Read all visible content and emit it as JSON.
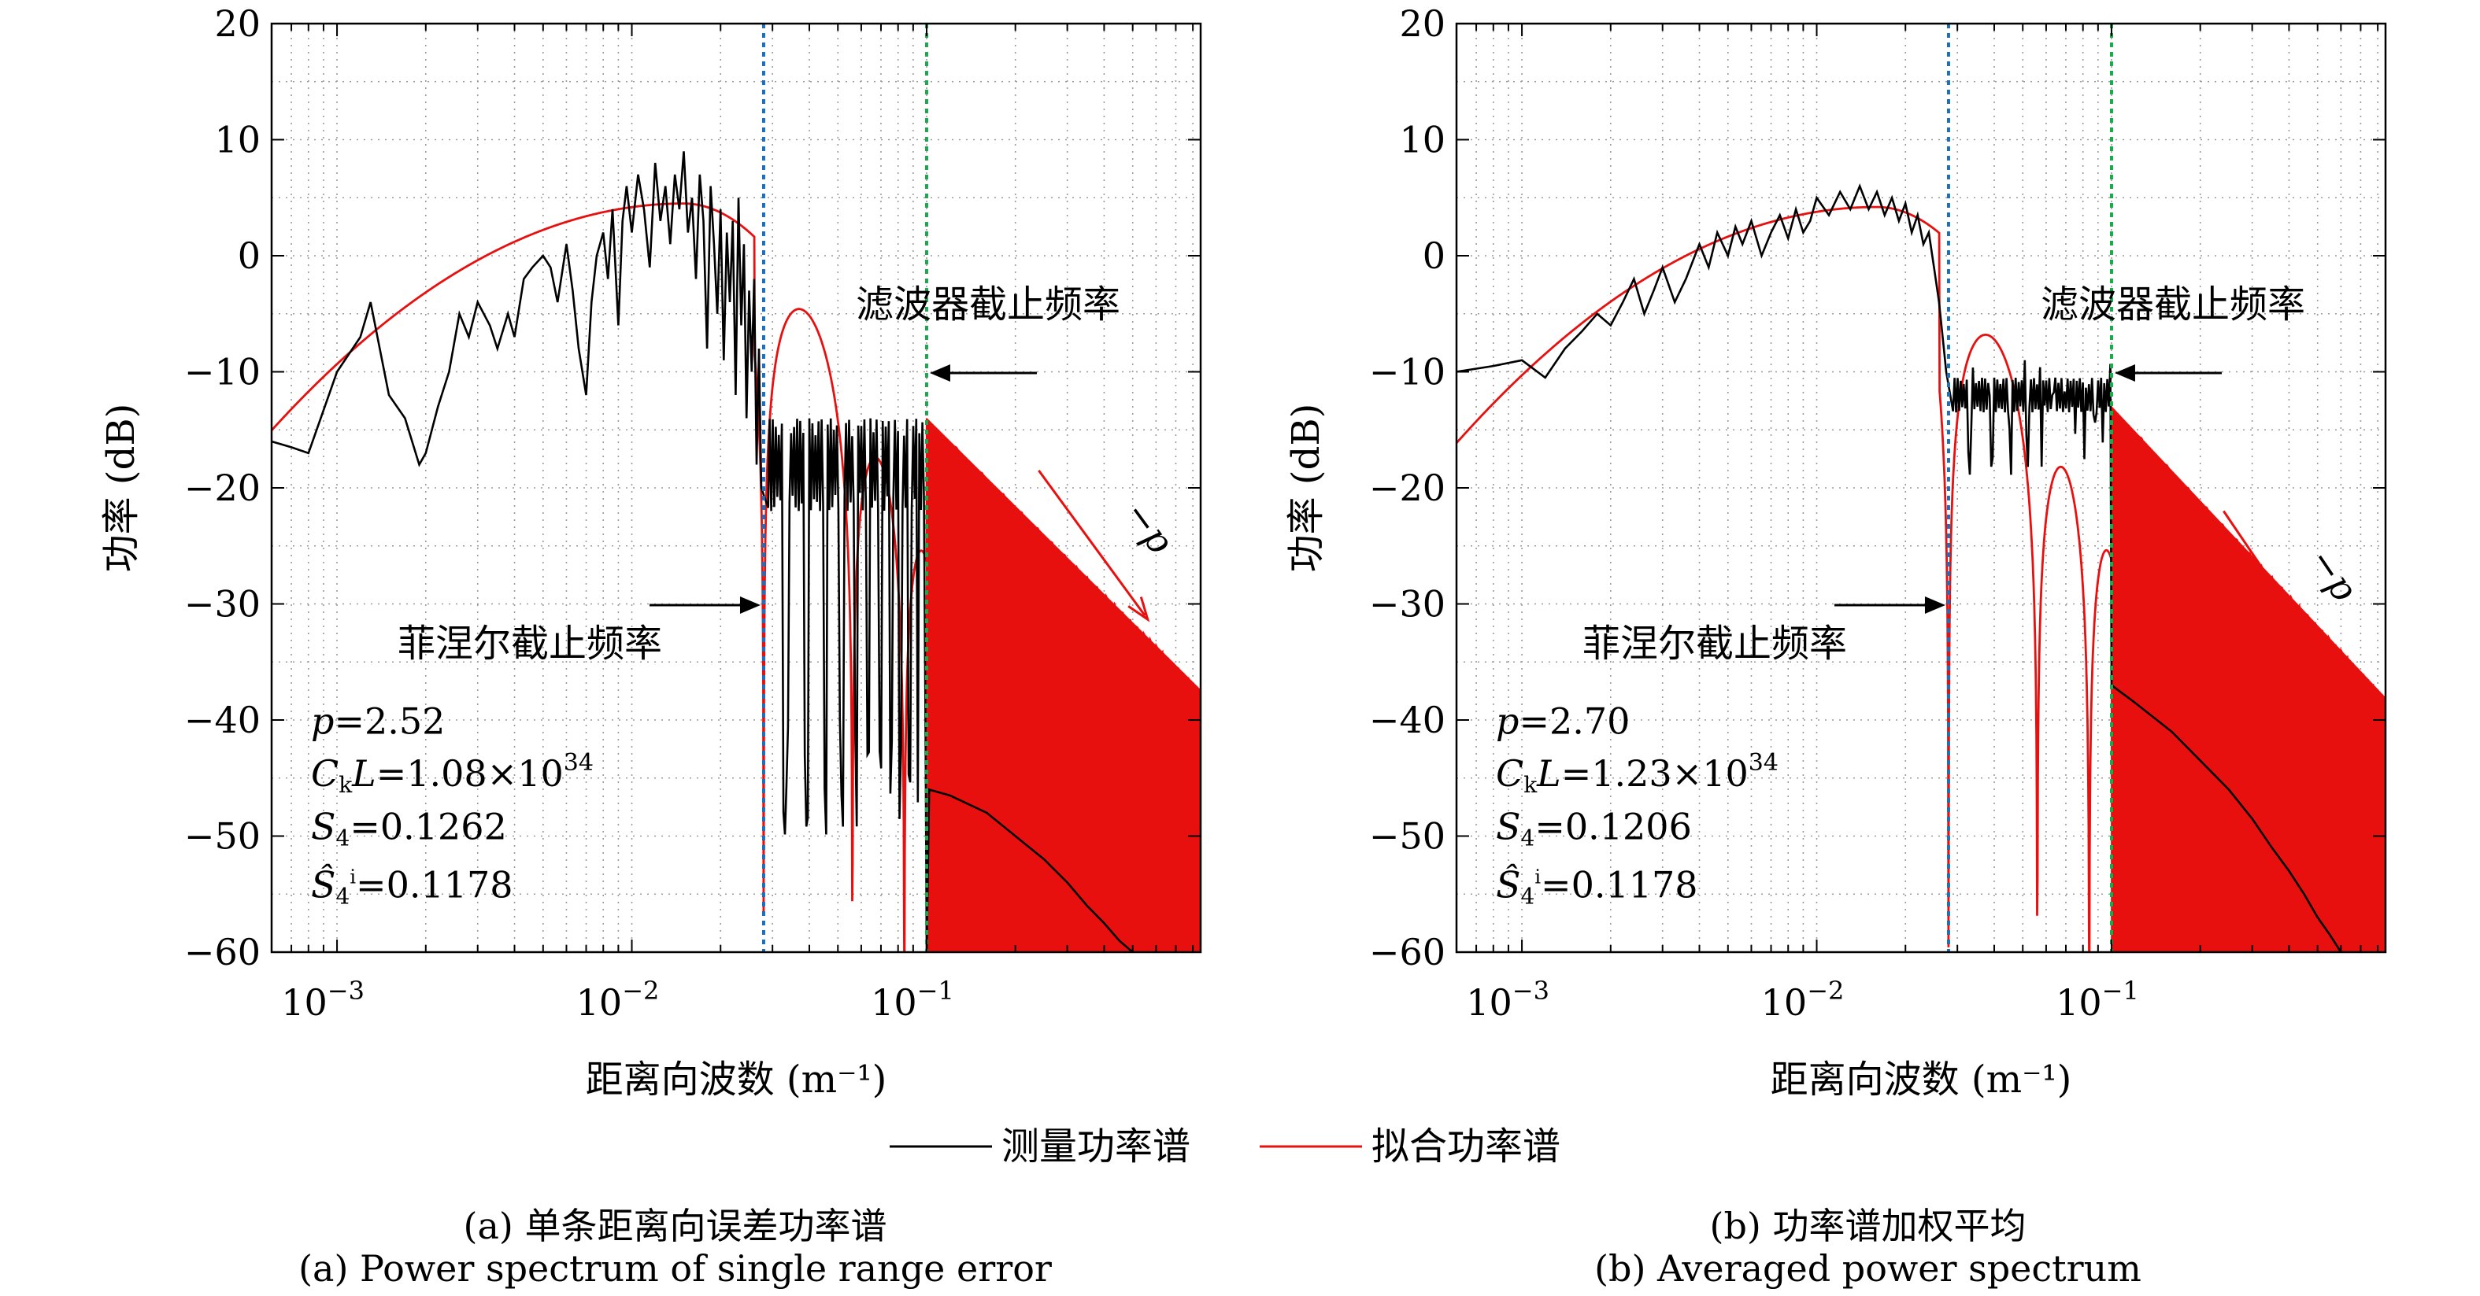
{
  "chart_data": [
    {
      "type": "line",
      "panel": "a",
      "xscale": "log",
      "xlim": [
        0.0006,
        0.85
      ],
      "ylim": [
        -60,
        20
      ],
      "xlabel": "距离向波数 (m⁻¹)",
      "ylabel": "功率 (dB)",
      "yticks": [
        "20",
        "10",
        "0",
        "−10",
        "−20",
        "−30",
        "−40",
        "−50",
        "−60"
      ],
      "xticks": [
        {
          "base": "10",
          "exp": "−3"
        },
        {
          "base": "10",
          "exp": "−2"
        },
        {
          "base": "10",
          "exp": "−1"
        }
      ],
      "grid": true,
      "fresnel_cutoff": 0.028,
      "filter_cutoff": 0.1,
      "fresnel_label": "菲涅尔截止频率",
      "filter_label": "滤波器截止频率",
      "slope_label": "−p",
      "params": {
        "p": "=2.52",
        "ckl": "=1.08×10",
        "ckl_exp": "34",
        "s4": "=0.1262",
        "s4hat": "=0.1178"
      },
      "measured_points": [
        [
          0.0006,
          -16
        ],
        [
          0.0007,
          -16.5
        ],
        [
          0.0008,
          -17
        ],
        [
          0.001,
          -10
        ],
        [
          0.0012,
          -7
        ],
        [
          0.0013,
          -4
        ],
        [
          0.0015,
          -12
        ],
        [
          0.0017,
          -14
        ],
        [
          0.0019,
          -18
        ],
        [
          0.002,
          -17
        ],
        [
          0.0022,
          -13
        ],
        [
          0.0024,
          -10
        ],
        [
          0.0026,
          -5
        ],
        [
          0.0028,
          -7
        ],
        [
          0.003,
          -4
        ],
        [
          0.0033,
          -6
        ],
        [
          0.0035,
          -8
        ],
        [
          0.0038,
          -5
        ],
        [
          0.004,
          -7
        ],
        [
          0.0043,
          -2
        ],
        [
          0.0046,
          -1
        ],
        [
          0.005,
          0
        ],
        [
          0.0053,
          -1
        ],
        [
          0.0056,
          -4
        ],
        [
          0.006,
          1
        ],
        [
          0.0063,
          -3
        ],
        [
          0.0066,
          -8
        ],
        [
          0.007,
          -12
        ],
        [
          0.0073,
          -4
        ],
        [
          0.0076,
          0
        ],
        [
          0.008,
          2
        ],
        [
          0.0083,
          -2
        ],
        [
          0.0086,
          4
        ],
        [
          0.009,
          -6
        ],
        [
          0.0093,
          3
        ],
        [
          0.0096,
          6
        ],
        [
          0.01,
          2
        ],
        [
          0.0105,
          7
        ],
        [
          0.011,
          4
        ],
        [
          0.0115,
          -1
        ],
        [
          0.012,
          8
        ],
        [
          0.0125,
          3
        ],
        [
          0.013,
          6
        ],
        [
          0.0135,
          1
        ],
        [
          0.014,
          7
        ],
        [
          0.0145,
          4
        ],
        [
          0.015,
          9
        ],
        [
          0.0155,
          2
        ],
        [
          0.016,
          5
        ],
        [
          0.0165,
          -2
        ],
        [
          0.017,
          7
        ],
        [
          0.0175,
          3
        ],
        [
          0.018,
          -8
        ],
        [
          0.0185,
          6
        ],
        [
          0.019,
          1
        ],
        [
          0.0195,
          -5
        ],
        [
          0.02,
          4
        ],
        [
          0.0205,
          -9
        ],
        [
          0.021,
          2
        ],
        [
          0.0215,
          -4
        ],
        [
          0.022,
          3
        ],
        [
          0.0225,
          -12
        ],
        [
          0.023,
          5
        ],
        [
          0.0235,
          -6
        ],
        [
          0.024,
          1
        ],
        [
          0.0245,
          -14
        ],
        [
          0.025,
          -3
        ],
        [
          0.0255,
          -10
        ],
        [
          0.026,
          -2
        ],
        [
          0.0265,
          -18
        ],
        [
          0.027,
          -8
        ],
        [
          0.0275,
          -20
        ]
      ],
      "measured_beyond": {
        "base": -18,
        "amp": 4,
        "dip": -45,
        "until": 0.1
      },
      "measured_tail": [
        [
          0.1,
          -60
        ],
        [
          0.102,
          -46
        ],
        [
          0.12,
          -46.5
        ],
        [
          0.16,
          -48
        ],
        [
          0.2,
          -50
        ],
        [
          0.25,
          -52
        ],
        [
          0.3,
          -54
        ],
        [
          0.35,
          -56
        ],
        [
          0.4,
          -57.5
        ],
        [
          0.45,
          -59
        ],
        [
          0.5,
          -60
        ]
      ],
      "fit": {
        "peak_k": 0.015,
        "peak_db": 4.5,
        "lobe_top": [
          -0.5,
          -14
        ],
        "slope": -2.52
      }
    },
    {
      "type": "line",
      "panel": "b",
      "xscale": "log",
      "xlim": [
        0.0006,
        0.85
      ],
      "ylim": [
        -60,
        20
      ],
      "xlabel": "距离向波数 (m⁻¹)",
      "ylabel": "功率 (dB)",
      "yticks": [
        "20",
        "10",
        "0",
        "−10",
        "−20",
        "−30",
        "−40",
        "−50",
        "−60"
      ],
      "xticks": [
        {
          "base": "10",
          "exp": "−3"
        },
        {
          "base": "10",
          "exp": "−2"
        },
        {
          "base": "10",
          "exp": "−1"
        }
      ],
      "grid": true,
      "fresnel_cutoff": 0.028,
      "filter_cutoff": 0.1,
      "fresnel_label": "菲涅尔截止频率",
      "filter_label": "滤波器截止频率",
      "slope_label": "−p",
      "params": {
        "p": "=2.70",
        "ckl": "=1.23×10",
        "ckl_exp": "34",
        "s4": "=0.1206",
        "s4hat": "=0.1178"
      },
      "measured_points": [
        [
          0.0006,
          -10
        ],
        [
          0.0008,
          -9.5
        ],
        [
          0.001,
          -9
        ],
        [
          0.0012,
          -10.5
        ],
        [
          0.0014,
          -8
        ],
        [
          0.0016,
          -6.5
        ],
        [
          0.0018,
          -5
        ],
        [
          0.002,
          -6
        ],
        [
          0.0022,
          -4
        ],
        [
          0.0024,
          -2
        ],
        [
          0.0026,
          -5
        ],
        [
          0.0028,
          -3
        ],
        [
          0.003,
          -1
        ],
        [
          0.0033,
          -4
        ],
        [
          0.0036,
          -2
        ],
        [
          0.004,
          1
        ],
        [
          0.0043,
          -1
        ],
        [
          0.0046,
          2
        ],
        [
          0.005,
          0
        ],
        [
          0.0053,
          2.5
        ],
        [
          0.0056,
          1
        ],
        [
          0.006,
          3
        ],
        [
          0.0065,
          0
        ],
        [
          0.007,
          2
        ],
        [
          0.0075,
          3.5
        ],
        [
          0.008,
          1.5
        ],
        [
          0.0085,
          4
        ],
        [
          0.009,
          2
        ],
        [
          0.0095,
          3
        ],
        [
          0.01,
          5
        ],
        [
          0.011,
          3.5
        ],
        [
          0.012,
          5.5
        ],
        [
          0.013,
          4
        ],
        [
          0.014,
          6
        ],
        [
          0.015,
          4
        ],
        [
          0.016,
          5.5
        ],
        [
          0.017,
          3.5
        ],
        [
          0.018,
          5
        ],
        [
          0.019,
          3
        ],
        [
          0.02,
          4.5
        ],
        [
          0.021,
          2
        ],
        [
          0.022,
          3.5
        ],
        [
          0.023,
          1
        ],
        [
          0.024,
          2
        ],
        [
          0.025,
          -1
        ],
        [
          0.026,
          -4
        ],
        [
          0.027,
          -8
        ],
        [
          0.0275,
          -10
        ]
      ],
      "measured_beyond": {
        "base": -12,
        "amp": 1.5,
        "dip": -14,
        "until": 0.1
      },
      "measured_tail": [
        [
          0.1,
          -37
        ],
        [
          0.12,
          -38.5
        ],
        [
          0.16,
          -41
        ],
        [
          0.2,
          -43.5
        ],
        [
          0.25,
          -46
        ],
        [
          0.3,
          -48.5
        ],
        [
          0.35,
          -51
        ],
        [
          0.4,
          -53
        ],
        [
          0.45,
          -55
        ],
        [
          0.5,
          -57
        ],
        [
          0.55,
          -58.5
        ],
        [
          0.6,
          -60
        ]
      ],
      "fit": {
        "peak_k": 0.016,
        "peak_db": 4.2,
        "lobe_top": [
          -3,
          -13
        ],
        "slope": -2.7
      }
    }
  ],
  "legend": {
    "measured": "测量功率谱",
    "fit": "拟合功率谱"
  },
  "colors": {
    "measured": "#000000",
    "fit": "#e8100f",
    "fresnel_line": "#1f6fb8",
    "filter_line": "#1ea84e",
    "grid": "#9a9a9a"
  },
  "captions": {
    "a_cn": "(a) 单条距离向误差功率谱",
    "a_en": "(a) Power spectrum of single range error",
    "b_cn": "(b) 功率谱加权平均",
    "b_en": "(b) Averaged power spectrum"
  }
}
